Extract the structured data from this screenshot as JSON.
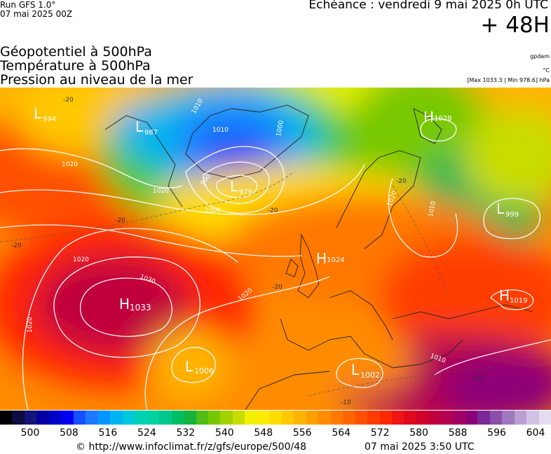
{
  "header": {
    "run": "Run GFS 1.0°",
    "run_date": "07 mai 2025 00Z",
    "echeance": "Echéance : vendredi 9 mai 2025 0h UTC",
    "lead": "+ 48H"
  },
  "layers": [
    "Géopotentiel à 500hPa",
    "Température à 500hPa",
    "Pression au niveau de la mer"
  ],
  "units": {
    "gpdam": "gpdam",
    "temp": "°C",
    "maxmin": "[Max 1033.3 | Min 978.6] hPa"
  },
  "pressure_centers": [
    {
      "type": "L",
      "value": "994"
    },
    {
      "type": "L",
      "value": "987"
    },
    {
      "type": "L",
      "value": "979"
    },
    {
      "type": "L",
      "value": "999"
    },
    {
      "type": "H",
      "value": "1028"
    },
    {
      "type": "H",
      "value": "1024"
    },
    {
      "type": "H",
      "value": "1033"
    },
    {
      "type": "H",
      "value": "1019"
    },
    {
      "type": "L",
      "value": "1006"
    },
    {
      "type": "L",
      "value": "1002"
    }
  ],
  "isobar_labels": [
    "1010",
    "1020",
    "1020",
    "1020",
    "1010",
    "1000",
    "990",
    "1000",
    "1020",
    "1010",
    "1030",
    "1020",
    "1020",
    "1010"
  ],
  "isotherm_labels": [
    "-20",
    "-20",
    "-20",
    "-20",
    "-20",
    "-20",
    "-10",
    "-10"
  ],
  "colorbar": {
    "ticks": [
      "500",
      "508",
      "516",
      "524",
      "532",
      "540",
      "548",
      "556",
      "564",
      "572",
      "580",
      "588",
      "596",
      "604"
    ],
    "colors": [
      "#000000",
      "#0c0c40",
      "#141478",
      "#0000a0",
      "#0000c8",
      "#0000f0",
      "#1450ff",
      "#1e78ff",
      "#0096ff",
      "#00b4f0",
      "#00c8dc",
      "#00d2b4",
      "#00d2a0",
      "#00c88c",
      "#00be64",
      "#14b43c",
      "#50be14",
      "#78c800",
      "#a0d200",
      "#c8dc00",
      "#f0f000",
      "#ffeb00",
      "#ffdc00",
      "#ffc800",
      "#ffb400",
      "#ffa000",
      "#ff8c00",
      "#ff7800",
      "#ff6400",
      "#ff5000",
      "#ff3c00",
      "#ff2800",
      "#f01414",
      "#e00a1e",
      "#d00028",
      "#c0003c",
      "#b40050",
      "#a00064",
      "#8c0078",
      "#7c2896",
      "#8c50aa",
      "#a078be",
      "#b9a0d2",
      "#d2c3e6",
      "#e6dcf0"
    ]
  },
  "footer": {
    "url": "© http://www.infoclimat.fr/z/gfs/europe/500/48",
    "run_time": "07 mai 2025  3:50 UTC"
  }
}
